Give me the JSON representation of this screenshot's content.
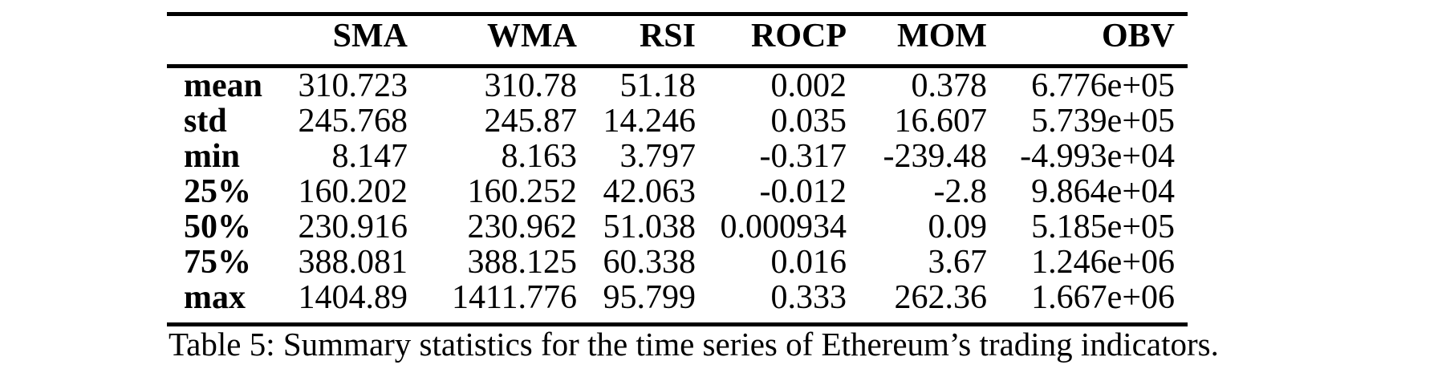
{
  "caption": "Table 5: Summary statistics for the time series of Ethereum’s trading indicators.",
  "colors": {
    "text": "#000000",
    "background": "#ffffff",
    "rule": "#000000"
  },
  "table": {
    "columns": [
      "",
      "SMA",
      "WMA",
      "RSI",
      "ROCP",
      "MOM",
      "OBV"
    ],
    "rows": [
      {
        "label": "mean",
        "values": [
          "310.723",
          "310.78",
          "51.18",
          "0.002",
          "0.378",
          "6.776e+05"
        ]
      },
      {
        "label": "std",
        "values": [
          "245.768",
          "245.87",
          "14.246",
          "0.035",
          "16.607",
          "5.739e+05"
        ]
      },
      {
        "label": "min",
        "values": [
          "8.147",
          "8.163",
          "3.797",
          "-0.317",
          "-239.48",
          "-4.993e+04"
        ]
      },
      {
        "label": "25%",
        "values": [
          "160.202",
          "160.252",
          "42.063",
          "-0.012",
          "-2.8",
          "9.864e+04"
        ]
      },
      {
        "label": "50%",
        "values": [
          "230.916",
          "230.962",
          "51.038",
          "0.000934",
          "0.09",
          "5.185e+05"
        ]
      },
      {
        "label": "75%",
        "values": [
          "388.081",
          "388.125",
          "60.338",
          "0.016",
          "3.67",
          "1.246e+06"
        ]
      },
      {
        "label": "max",
        "values": [
          "1404.89",
          "1411.776",
          "95.799",
          "0.333",
          "262.36",
          "1.667e+06"
        ]
      }
    ]
  }
}
